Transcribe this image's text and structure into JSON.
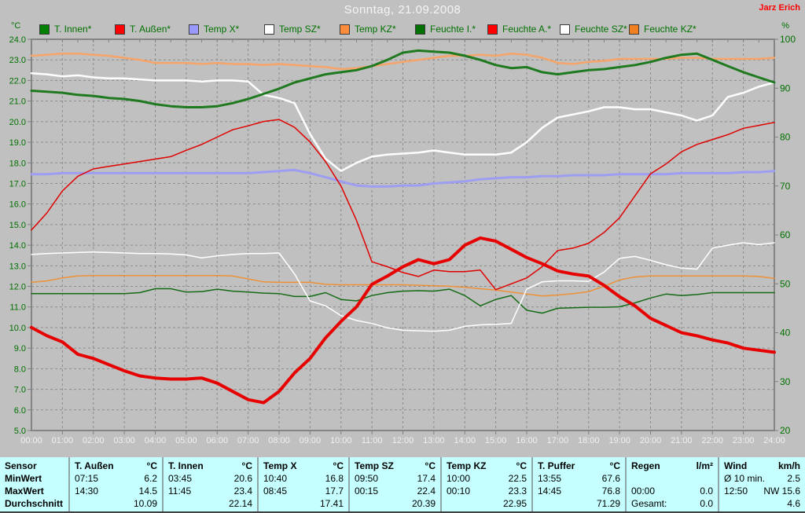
{
  "header": {
    "title": "Sonntag, 21.09.2008",
    "author": "Jarz Erich",
    "left_axis_unit": "°C",
    "right_axis_unit": "%"
  },
  "legend": {
    "items": [
      {
        "label": "T. Innen*",
        "color": "#008000"
      },
      {
        "label": "T. Außen*",
        "color": "#FF0000"
      },
      {
        "label": "Temp X*",
        "color": "#9999FF"
      },
      {
        "label": "Temp SZ*",
        "color": "#FFFFFF"
      },
      {
        "label": "Temp KZ*",
        "color": "#FA8C3C"
      },
      {
        "label": "Feuchte I.*",
        "color": "#007000"
      },
      {
        "label": "Feuchte A.*",
        "color": "#FF0000"
      },
      {
        "label": "Feuchte SZ*",
        "color": "#FFFFFF"
      },
      {
        "label": "Feuchte KZ*",
        "color": "#F08020"
      }
    ]
  },
  "chart_data": {
    "type": "line",
    "title": "Sonntag, 21.09.2008",
    "x_step_hours": 0.5,
    "x_ticks": [
      "00:00",
      "01:00",
      "02:00",
      "03:00",
      "04:00",
      "05:00",
      "06:00",
      "07:00",
      "08:00",
      "09:00",
      "10:00",
      "11:00",
      "12:00",
      "13:00",
      "14:00",
      "15:00",
      "16:00",
      "17:00",
      "18:00",
      "19:00",
      "20:00",
      "21:00",
      "22:00",
      "23:00",
      "24:00"
    ],
    "left_axis": {
      "label": "°C",
      "min": 5,
      "max": 24,
      "ticks": [
        "24.0",
        "23.0",
        "22.0",
        "21.0",
        "20.0",
        "19.0",
        "18.0",
        "17.0",
        "16.0",
        "15.0",
        "14.0",
        "13.0",
        "12.0",
        "11.0",
        "10.0",
        "9.0",
        "8.0",
        "7.0",
        "6.0",
        "5.0"
      ]
    },
    "right_axis": {
      "label": "%",
      "min": 20,
      "max": 100,
      "ticks": [
        "100",
        "90",
        "80",
        "70",
        "60",
        "50",
        "40",
        "30",
        "20"
      ]
    },
    "grid": true,
    "legend_position": "top",
    "series": [
      {
        "name": "Temp X",
        "axis": "left",
        "color": "#9D9DF2",
        "width": 3,
        "values": [
          17.45,
          17.45,
          17.5,
          17.5,
          17.5,
          17.5,
          17.5,
          17.5,
          17.5,
          17.5,
          17.5,
          17.5,
          17.5,
          17.5,
          17.5,
          17.55,
          17.6,
          17.65,
          17.5,
          17.3,
          17.1,
          16.9,
          16.85,
          16.85,
          16.9,
          16.9,
          17.0,
          17.05,
          17.1,
          17.2,
          17.25,
          17.3,
          17.3,
          17.35,
          17.35,
          17.4,
          17.4,
          17.4,
          17.45,
          17.45,
          17.45,
          17.45,
          17.5,
          17.5,
          17.5,
          17.5,
          17.55,
          17.55,
          17.6
        ]
      },
      {
        "name": "Temp KZ",
        "axis": "left",
        "color": "#F7A468",
        "width": 2.5,
        "values": [
          23.2,
          23.25,
          23.3,
          23.3,
          23.25,
          23.2,
          23.1,
          23.0,
          22.85,
          22.85,
          22.85,
          22.8,
          22.85,
          22.8,
          22.8,
          22.75,
          22.8,
          22.75,
          22.7,
          22.65,
          22.55,
          22.6,
          22.7,
          22.8,
          22.9,
          23.0,
          23.1,
          23.2,
          23.2,
          23.25,
          23.2,
          23.3,
          23.25,
          23.1,
          22.85,
          22.8,
          22.9,
          22.95,
          23.05,
          23.05,
          23.05,
          23.05,
          23.1,
          23.1,
          23.05,
          23.05,
          23.05,
          23.05,
          23.1
        ]
      },
      {
        "name": "Temp SZ",
        "axis": "left",
        "color": "#FFFFFF",
        "width": 2.5,
        "values": [
          22.35,
          22.3,
          22.2,
          22.25,
          22.15,
          22.1,
          22.1,
          22.05,
          22.0,
          22.0,
          22.0,
          21.95,
          22.0,
          22.0,
          21.95,
          21.3,
          21.15,
          20.9,
          19.4,
          18.2,
          17.6,
          18.0,
          18.3,
          18.4,
          18.45,
          18.5,
          18.6,
          18.5,
          18.4,
          18.4,
          18.4,
          18.5,
          19.0,
          19.7,
          20.2,
          20.35,
          20.5,
          20.7,
          20.7,
          20.6,
          20.6,
          20.45,
          20.3,
          20.05,
          20.3,
          21.2,
          21.4,
          21.7,
          21.9
        ]
      },
      {
        "name": "Feuchte KZ",
        "axis": "right",
        "color": "#EE9036",
        "width": 1.5,
        "values": [
          50.3,
          50.6,
          51.2,
          51.6,
          51.7,
          51.7,
          51.7,
          51.7,
          51.7,
          51.7,
          51.7,
          51.7,
          51.7,
          51.6,
          51.0,
          50.4,
          50.3,
          50.3,
          50.3,
          49.9,
          49.8,
          49.8,
          49.8,
          49.8,
          49.8,
          49.7,
          49.6,
          49.5,
          49.3,
          49.0,
          48.7,
          48.3,
          47.9,
          47.5,
          47.7,
          48.0,
          48.4,
          49.5,
          50.8,
          51.4,
          51.6,
          51.6,
          51.6,
          51.6,
          51.6,
          51.6,
          51.6,
          51.5,
          51.1
        ]
      },
      {
        "name": "Feuchte I.",
        "axis": "right",
        "color": "#156B15",
        "width": 1.5,
        "values": [
          48.0,
          48.0,
          48.0,
          48.0,
          48.0,
          48.0,
          48.0,
          48.2,
          49.0,
          49.0,
          48.3,
          48.4,
          48.9,
          48.5,
          48.3,
          48.1,
          48.0,
          47.4,
          47.4,
          48.2,
          46.8,
          46.5,
          47.6,
          48.2,
          48.5,
          48.6,
          48.5,
          48.9,
          47.6,
          45.5,
          46.8,
          47.6,
          44.6,
          44.0,
          45.0,
          45.1,
          45.2,
          45.2,
          45.3,
          46.1,
          47.1,
          47.9,
          47.6,
          47.8,
          48.2,
          48.2,
          48.2,
          48.2,
          48.2
        ]
      },
      {
        "name": "Feuchte SZ",
        "axis": "right",
        "color": "#FFFFFF",
        "width": 1.5,
        "values": [
          56.0,
          56.2,
          56.3,
          56.4,
          56.5,
          56.4,
          56.3,
          56.2,
          56.2,
          56.1,
          55.9,
          55.3,
          55.7,
          56.0,
          56.2,
          56.2,
          56.3,
          52.0,
          46.5,
          45.5,
          43.5,
          42.5,
          41.9,
          41.0,
          40.5,
          40.4,
          40.3,
          40.5,
          41.3,
          41.6,
          41.7,
          41.9,
          48.9,
          50.4,
          50.6,
          50.6,
          50.5,
          52.4,
          55.2,
          55.6,
          54.8,
          53.9,
          53.2,
          53.0,
          57.3,
          57.9,
          58.4,
          58.0,
          58.4
        ]
      },
      {
        "name": "Feuchte A.",
        "axis": "right",
        "color": "#E00000",
        "width": 1.5,
        "values": [
          61.0,
          64.5,
          69.0,
          72.0,
          73.5,
          74.0,
          74.5,
          75.0,
          75.5,
          76.0,
          77.3,
          78.5,
          80.0,
          81.5,
          82.3,
          83.2,
          83.6,
          82.0,
          79.0,
          75.0,
          70.0,
          63.0,
          54.5,
          53.5,
          52.3,
          51.5,
          52.8,
          52.5,
          52.5,
          52.8,
          48.8,
          50.0,
          51.2,
          53.5,
          56.8,
          57.3,
          58.3,
          60.5,
          63.5,
          68.0,
          72.5,
          74.5,
          77.0,
          78.5,
          79.5,
          80.5,
          81.8,
          82.4,
          83.0
        ]
      },
      {
        "name": "T. Innen",
        "axis": "left",
        "color": "#1F7A1F",
        "width": 3,
        "values": [
          21.5,
          21.45,
          21.4,
          21.3,
          21.25,
          21.15,
          21.1,
          21.0,
          20.85,
          20.75,
          20.7,
          20.7,
          20.75,
          20.9,
          21.1,
          21.35,
          21.6,
          21.9,
          22.1,
          22.3,
          22.4,
          22.5,
          22.7,
          23.0,
          23.35,
          23.45,
          23.4,
          23.35,
          23.2,
          23.0,
          22.75,
          22.6,
          22.65,
          22.4,
          22.3,
          22.4,
          22.5,
          22.55,
          22.65,
          22.75,
          22.9,
          23.1,
          23.25,
          23.3,
          23.0,
          22.7,
          22.4,
          22.15,
          21.9
        ]
      },
      {
        "name": "T. Außen",
        "axis": "left",
        "color": "#E60000",
        "width": 4,
        "values": [
          10.0,
          9.6,
          9.3,
          8.7,
          8.5,
          8.2,
          7.9,
          7.65,
          7.55,
          7.5,
          7.5,
          7.55,
          7.3,
          6.9,
          6.5,
          6.35,
          6.9,
          7.8,
          8.5,
          9.5,
          10.3,
          11.0,
          12.1,
          12.5,
          12.95,
          13.3,
          13.1,
          13.3,
          14.0,
          14.35,
          14.2,
          13.8,
          13.4,
          13.1,
          12.75,
          12.6,
          12.5,
          12.05,
          11.5,
          11.05,
          10.45,
          10.1,
          9.75,
          9.6,
          9.4,
          9.25,
          9.0,
          8.9,
          8.8
        ]
      }
    ]
  },
  "table": {
    "row_labels": [
      "Sensor",
      "MinWert",
      "MaxWert",
      "Durchschnitt"
    ],
    "columns": [
      {
        "title": "T. Außen",
        "unit": "°C",
        "min": [
          "07:15",
          "6.2"
        ],
        "max": [
          "14:30",
          "14.5"
        ],
        "avg": [
          "",
          "10.09"
        ]
      },
      {
        "title": "T. Innen",
        "unit": "°C",
        "min": [
          "03:45",
          "20.6"
        ],
        "max": [
          "11:45",
          "23.4"
        ],
        "avg": [
          "",
          "22.14"
        ]
      },
      {
        "title": "Temp X",
        "unit": "°C",
        "min": [
          "10:40",
          "16.8"
        ],
        "max": [
          "08:45",
          "17.7"
        ],
        "avg": [
          "",
          "17.41"
        ]
      },
      {
        "title": "Temp SZ",
        "unit": "°C",
        "min": [
          "09:50",
          "17.4"
        ],
        "max": [
          "00:15",
          "22.4"
        ],
        "avg": [
          "",
          "20.39"
        ]
      },
      {
        "title": "Temp KZ",
        "unit": "°C",
        "min": [
          "10:00",
          "22.5"
        ],
        "max": [
          "00:10",
          "23.3"
        ],
        "avg": [
          "",
          "22.95"
        ]
      },
      {
        "title": "T. Puffer",
        "unit": "°C",
        "min": [
          "13:55",
          "67.6"
        ],
        "max": [
          "14:45",
          "76.8"
        ],
        "avg": [
          "",
          "71.29"
        ]
      },
      {
        "title": "Regen",
        "unit": "l/m²",
        "min": [
          "",
          ""
        ],
        "max": [
          "00:00",
          "0.0"
        ],
        "avg": [
          "Gesamt:",
          "0.0"
        ]
      },
      {
        "title": "Wind",
        "unit": "km/h",
        "min": [
          "Ø 10 min.",
          "2.5"
        ],
        "max": [
          "12:50",
          "NW 15.6"
        ],
        "avg": [
          "",
          "4.6"
        ]
      }
    ]
  }
}
